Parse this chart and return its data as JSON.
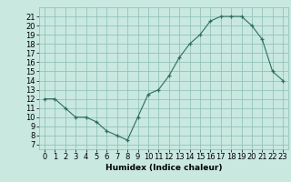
{
  "x": [
    0,
    1,
    2,
    3,
    4,
    5,
    6,
    7,
    8,
    9,
    10,
    11,
    12,
    13,
    14,
    15,
    16,
    17,
    18,
    19,
    20,
    21,
    22,
    23
  ],
  "y": [
    12,
    12,
    11,
    10,
    10,
    9.5,
    8.5,
    8,
    7.5,
    10,
    12.5,
    13,
    14.5,
    16.5,
    18,
    19,
    20.5,
    21,
    21,
    21,
    20,
    18.5,
    15,
    14
  ],
  "xlabel": "Humidex (Indice chaleur)",
  "xlim": [
    -0.5,
    23.5
  ],
  "ylim": [
    6.5,
    22
  ],
  "yticks": [
    7,
    8,
    9,
    10,
    11,
    12,
    13,
    14,
    15,
    16,
    17,
    18,
    19,
    20,
    21
  ],
  "xticks": [
    0,
    1,
    2,
    3,
    4,
    5,
    6,
    7,
    8,
    9,
    10,
    11,
    12,
    13,
    14,
    15,
    16,
    17,
    18,
    19,
    20,
    21,
    22,
    23
  ],
  "line_color": "#2e6e5e",
  "marker_color": "#2e6e5e",
  "bg_color": "#c8e8e0",
  "grid_color": "#8bbcb4",
  "label_fontsize": 6.5,
  "tick_fontsize": 6
}
